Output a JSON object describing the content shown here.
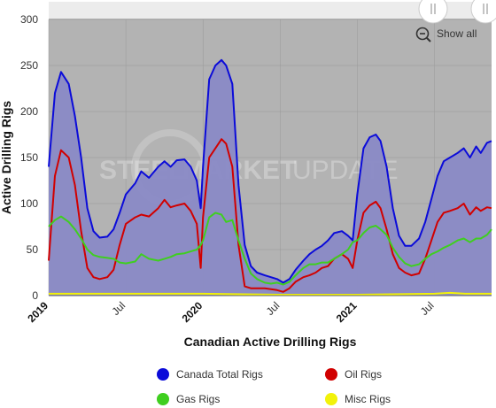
{
  "chart_data": {
    "type": "line",
    "xlabel": "Canadian Active Drilling Rigs",
    "ylabel": "Active Drilling Rigs",
    "ylim": [
      0,
      300
    ],
    "yticks": [
      0,
      50,
      100,
      150,
      200,
      250,
      300
    ],
    "xlim": [
      2019.0,
      2021.87
    ],
    "xticks": [
      {
        "x": 2019.0,
        "label": "2019",
        "major": true
      },
      {
        "x": 2019.5,
        "label": "Jul",
        "major": false
      },
      {
        "x": 2020.0,
        "label": "2020",
        "major": true
      },
      {
        "x": 2020.5,
        "label": "Jul",
        "major": false
      },
      {
        "x": 2021.0,
        "label": "2021",
        "major": true
      },
      {
        "x": 2021.5,
        "label": "Jul",
        "major": false
      }
    ],
    "grid": true,
    "legend_position": "bottom",
    "watermark": "STEEL MARKET UPDATE",
    "series": [
      {
        "name": "Canada Total Rigs",
        "color": "#0b0bd9",
        "fill": "#8a8ac6",
        "points": [
          [
            2019.0,
            140
          ],
          [
            2019.04,
            220
          ],
          [
            2019.08,
            243
          ],
          [
            2019.13,
            230
          ],
          [
            2019.17,
            195
          ],
          [
            2019.21,
            150
          ],
          [
            2019.25,
            95
          ],
          [
            2019.29,
            70
          ],
          [
            2019.33,
            63
          ],
          [
            2019.38,
            64
          ],
          [
            2019.42,
            72
          ],
          [
            2019.46,
            90
          ],
          [
            2019.5,
            110
          ],
          [
            2019.56,
            122
          ],
          [
            2019.6,
            135
          ],
          [
            2019.65,
            128
          ],
          [
            2019.71,
            140
          ],
          [
            2019.75,
            146
          ],
          [
            2019.79,
            140
          ],
          [
            2019.83,
            147
          ],
          [
            2019.88,
            148
          ],
          [
            2019.92,
            140
          ],
          [
            2019.96,
            125
          ],
          [
            2019.985,
            95
          ],
          [
            2020.0,
            140
          ],
          [
            2020.04,
            235
          ],
          [
            2020.08,
            250
          ],
          [
            2020.12,
            256
          ],
          [
            2020.15,
            250
          ],
          [
            2020.19,
            230
          ],
          [
            2020.23,
            120
          ],
          [
            2020.27,
            55
          ],
          [
            2020.31,
            32
          ],
          [
            2020.35,
            25
          ],
          [
            2020.4,
            22
          ],
          [
            2020.44,
            20
          ],
          [
            2020.48,
            18
          ],
          [
            2020.52,
            14
          ],
          [
            2020.56,
            18
          ],
          [
            2020.6,
            28
          ],
          [
            2020.65,
            38
          ],
          [
            2020.69,
            45
          ],
          [
            2020.73,
            50
          ],
          [
            2020.77,
            54
          ],
          [
            2020.81,
            60
          ],
          [
            2020.85,
            68
          ],
          [
            2020.9,
            70
          ],
          [
            2020.94,
            65
          ],
          [
            2020.97,
            60
          ],
          [
            2021.0,
            110
          ],
          [
            2021.04,
            160
          ],
          [
            2021.08,
            172
          ],
          [
            2021.12,
            175
          ],
          [
            2021.15,
            168
          ],
          [
            2021.19,
            140
          ],
          [
            2021.23,
            95
          ],
          [
            2021.27,
            65
          ],
          [
            2021.31,
            54
          ],
          [
            2021.35,
            54
          ],
          [
            2021.4,
            62
          ],
          [
            2021.44,
            80
          ],
          [
            2021.48,
            105
          ],
          [
            2021.52,
            130
          ],
          [
            2021.56,
            146
          ],
          [
            2021.6,
            150
          ],
          [
            2021.65,
            155
          ],
          [
            2021.69,
            160
          ],
          [
            2021.73,
            150
          ],
          [
            2021.77,
            162
          ],
          [
            2021.8,
            155
          ],
          [
            2021.84,
            166
          ],
          [
            2021.87,
            168
          ]
        ]
      },
      {
        "name": "Oil Rigs",
        "color": "#d10000",
        "points": [
          [
            2019.0,
            38
          ],
          [
            2019.04,
            130
          ],
          [
            2019.08,
            158
          ],
          [
            2019.13,
            150
          ],
          [
            2019.17,
            120
          ],
          [
            2019.21,
            70
          ],
          [
            2019.25,
            30
          ],
          [
            2019.29,
            20
          ],
          [
            2019.33,
            18
          ],
          [
            2019.38,
            20
          ],
          [
            2019.42,
            28
          ],
          [
            2019.46,
            55
          ],
          [
            2019.5,
            78
          ],
          [
            2019.56,
            85
          ],
          [
            2019.6,
            88
          ],
          [
            2019.65,
            86
          ],
          [
            2019.71,
            95
          ],
          [
            2019.75,
            104
          ],
          [
            2019.79,
            96
          ],
          [
            2019.83,
            98
          ],
          [
            2019.88,
            100
          ],
          [
            2019.92,
            92
          ],
          [
            2019.96,
            78
          ],
          [
            2019.985,
            30
          ],
          [
            2020.0,
            85
          ],
          [
            2020.04,
            150
          ],
          [
            2020.08,
            160
          ],
          [
            2020.12,
            170
          ],
          [
            2020.15,
            165
          ],
          [
            2020.19,
            140
          ],
          [
            2020.23,
            55
          ],
          [
            2020.27,
            10
          ],
          [
            2020.31,
            8
          ],
          [
            2020.35,
            8
          ],
          [
            2020.4,
            8
          ],
          [
            2020.44,
            7
          ],
          [
            2020.48,
            6
          ],
          [
            2020.52,
            4
          ],
          [
            2020.56,
            8
          ],
          [
            2020.6,
            15
          ],
          [
            2020.65,
            20
          ],
          [
            2020.69,
            22
          ],
          [
            2020.73,
            25
          ],
          [
            2020.77,
            30
          ],
          [
            2020.81,
            32
          ],
          [
            2020.85,
            40
          ],
          [
            2020.9,
            45
          ],
          [
            2020.94,
            40
          ],
          [
            2020.97,
            30
          ],
          [
            2021.0,
            60
          ],
          [
            2021.04,
            90
          ],
          [
            2021.08,
            98
          ],
          [
            2021.12,
            102
          ],
          [
            2021.15,
            95
          ],
          [
            2021.19,
            72
          ],
          [
            2021.23,
            45
          ],
          [
            2021.27,
            30
          ],
          [
            2021.31,
            25
          ],
          [
            2021.35,
            22
          ],
          [
            2021.4,
            24
          ],
          [
            2021.44,
            40
          ],
          [
            2021.48,
            60
          ],
          [
            2021.52,
            80
          ],
          [
            2021.56,
            90
          ],
          [
            2021.6,
            92
          ],
          [
            2021.65,
            95
          ],
          [
            2021.69,
            100
          ],
          [
            2021.73,
            88
          ],
          [
            2021.77,
            96
          ],
          [
            2021.8,
            92
          ],
          [
            2021.84,
            96
          ],
          [
            2021.87,
            95
          ]
        ]
      },
      {
        "name": "Gas Rigs",
        "color": "#3fcf1f",
        "points": [
          [
            2019.0,
            75
          ],
          [
            2019.04,
            82
          ],
          [
            2019.08,
            86
          ],
          [
            2019.13,
            80
          ],
          [
            2019.17,
            72
          ],
          [
            2019.21,
            62
          ],
          [
            2019.25,
            50
          ],
          [
            2019.29,
            44
          ],
          [
            2019.33,
            42
          ],
          [
            2019.38,
            41
          ],
          [
            2019.42,
            40
          ],
          [
            2019.46,
            36
          ],
          [
            2019.5,
            35
          ],
          [
            2019.56,
            37
          ],
          [
            2019.6,
            45
          ],
          [
            2019.65,
            40
          ],
          [
            2019.71,
            38
          ],
          [
            2019.75,
            40
          ],
          [
            2019.79,
            42
          ],
          [
            2019.83,
            45
          ],
          [
            2019.88,
            46
          ],
          [
            2019.92,
            48
          ],
          [
            2019.96,
            50
          ],
          [
            2019.985,
            55
          ],
          [
            2020.0,
            60
          ],
          [
            2020.04,
            85
          ],
          [
            2020.08,
            90
          ],
          [
            2020.12,
            88
          ],
          [
            2020.15,
            80
          ],
          [
            2020.19,
            82
          ],
          [
            2020.23,
            60
          ],
          [
            2020.27,
            40
          ],
          [
            2020.31,
            24
          ],
          [
            2020.35,
            18
          ],
          [
            2020.4,
            14
          ],
          [
            2020.44,
            13
          ],
          [
            2020.48,
            14
          ],
          [
            2020.52,
            12
          ],
          [
            2020.56,
            15
          ],
          [
            2020.6,
            22
          ],
          [
            2020.65,
            30
          ],
          [
            2020.69,
            34
          ],
          [
            2020.73,
            34
          ],
          [
            2020.77,
            36
          ],
          [
            2020.81,
            36
          ],
          [
            2020.85,
            40
          ],
          [
            2020.9,
            45
          ],
          [
            2020.94,
            50
          ],
          [
            2020.97,
            58
          ],
          [
            2021.0,
            60
          ],
          [
            2021.04,
            68
          ],
          [
            2021.08,
            74
          ],
          [
            2021.12,
            76
          ],
          [
            2021.15,
            72
          ],
          [
            2021.19,
            66
          ],
          [
            2021.23,
            52
          ],
          [
            2021.27,
            42
          ],
          [
            2021.31,
            35
          ],
          [
            2021.35,
            32
          ],
          [
            2021.4,
            34
          ],
          [
            2021.44,
            40
          ],
          [
            2021.48,
            45
          ],
          [
            2021.52,
            48
          ],
          [
            2021.56,
            52
          ],
          [
            2021.6,
            55
          ],
          [
            2021.65,
            60
          ],
          [
            2021.69,
            62
          ],
          [
            2021.73,
            58
          ],
          [
            2021.77,
            62
          ],
          [
            2021.8,
            62
          ],
          [
            2021.84,
            66
          ],
          [
            2021.87,
            72
          ]
        ]
      },
      {
        "name": "Misc Rigs",
        "color": "#f2f20a",
        "points": [
          [
            2019.0,
            2
          ],
          [
            2019.5,
            2
          ],
          [
            2020.0,
            2
          ],
          [
            2020.5,
            1
          ],
          [
            2021.0,
            1
          ],
          [
            2021.5,
            2
          ],
          [
            2021.6,
            3
          ],
          [
            2021.7,
            2
          ],
          [
            2021.87,
            2
          ]
        ]
      }
    ]
  },
  "controls": {
    "show_all_label": "Show all"
  },
  "legend": [
    {
      "label": "Canada Total Rigs",
      "color": "#0b0bd9"
    },
    {
      "label": "Oil Rigs",
      "color": "#d10000"
    },
    {
      "label": "Gas Rigs",
      "color": "#3fcf1f"
    },
    {
      "label": "Misc Rigs",
      "color": "#f2f20a"
    }
  ]
}
